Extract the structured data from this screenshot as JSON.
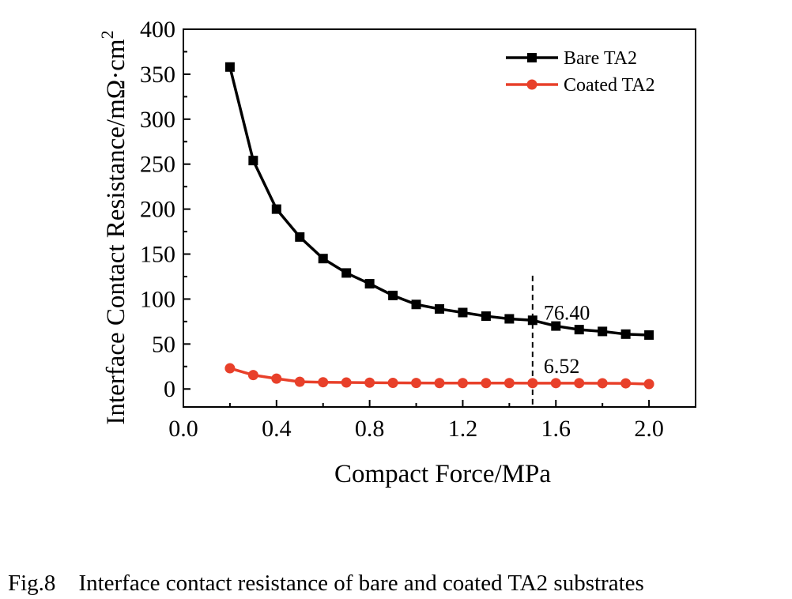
{
  "chart_data": {
    "type": "line",
    "xlabel": "Compact Force/MPa",
    "ylabel": "Interface Contact Resistance/mΩ·cm",
    "ylabel_sup": "2",
    "xlim": [
      0.0,
      2.2
    ],
    "ylim": [
      -20,
      400
    ],
    "x_ticks": [
      "0.0",
      "0.4",
      "0.8",
      "1.2",
      "1.6",
      "2.0"
    ],
    "y_ticks": [
      "0",
      "50",
      "100",
      "150",
      "200",
      "250",
      "300",
      "350",
      "400"
    ],
    "grid": false,
    "legend_position": "top-right",
    "x": [
      0.2,
      0.3,
      0.4,
      0.5,
      0.6,
      0.7,
      0.8,
      0.9,
      1.0,
      1.1,
      1.2,
      1.3,
      1.4,
      1.5,
      1.6,
      1.7,
      1.8,
      1.9,
      2.0
    ],
    "series": [
      {
        "name": "Bare TA2",
        "color": "#000000",
        "marker": "square",
        "values": [
          358,
          254,
          200,
          169,
          145,
          129,
          117,
          104,
          94,
          89,
          85,
          81,
          78,
          76.4,
          70,
          66,
          64,
          61,
          60
        ]
      },
      {
        "name": "Coated TA2",
        "color": "#e8402a",
        "marker": "circle",
        "values": [
          23,
          15.5,
          11.5,
          8,
          7.5,
          7.2,
          7,
          6.8,
          6.7,
          6.6,
          6.6,
          6.6,
          6.55,
          6.52,
          6.5,
          6.5,
          6.4,
          6.3,
          5.5
        ]
      }
    ],
    "annotations": [
      {
        "text": "76.40",
        "x": 1.5,
        "y": 76.4
      },
      {
        "text": "6.52",
        "x": 1.5,
        "y": 6.52
      }
    ],
    "reference_line": {
      "x": 1.5,
      "style": "dashed"
    }
  },
  "caption": {
    "label": "Fig.8",
    "text": "Interface contact resistance of bare and coated TA2 substrates"
  }
}
